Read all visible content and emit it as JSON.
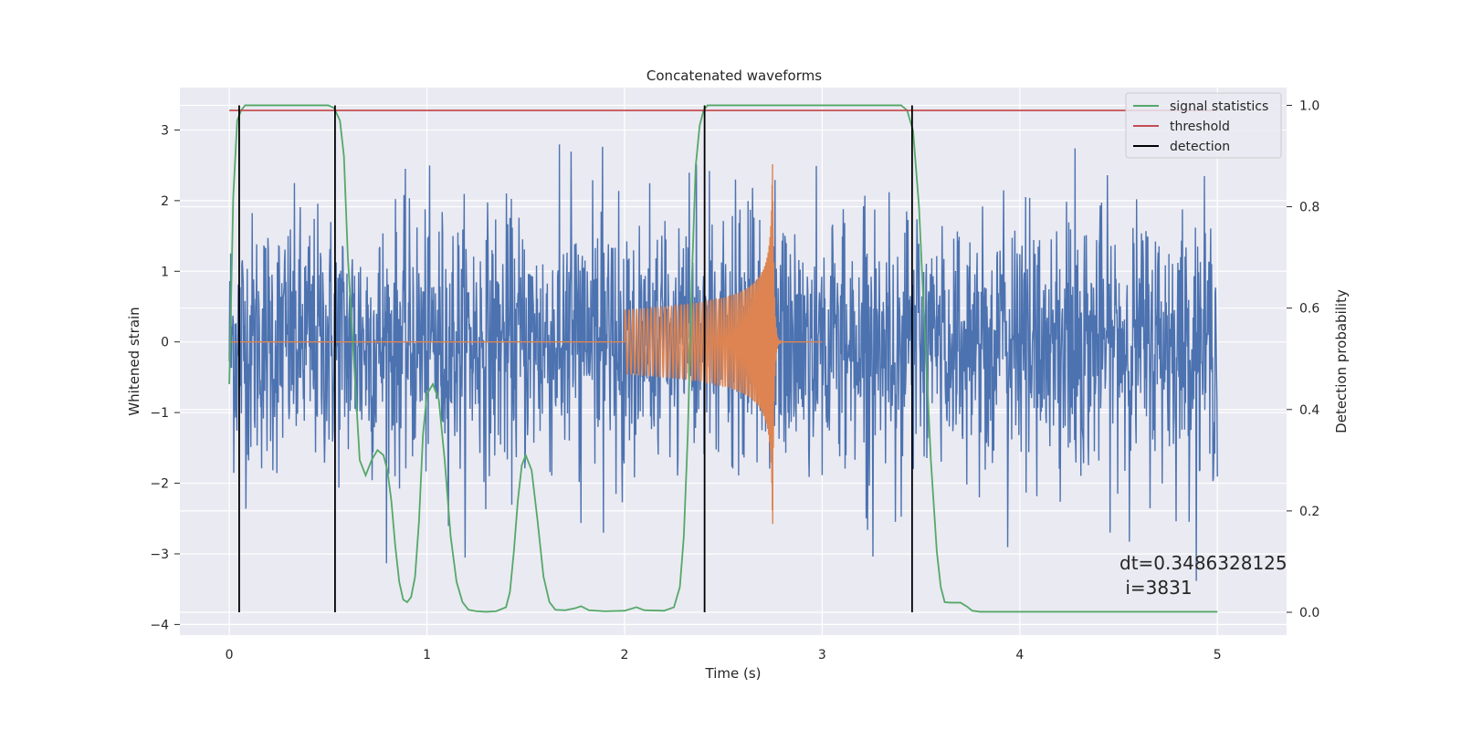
{
  "chart_data": {
    "type": "line",
    "title": "Concatenated waveforms",
    "xlabel": "Time (s)",
    "ylabel": "Whitened strain",
    "ylabel_right": "Detection probability",
    "xlim": [
      -0.25,
      5.35
    ],
    "ylim": [
      -4.15,
      3.6
    ],
    "ylim_right": [
      -0.045,
      1.035
    ],
    "xticks": [
      0,
      1,
      2,
      3,
      4,
      5
    ],
    "xtick_labels": [
      "0",
      "1",
      "2",
      "3",
      "4",
      "5"
    ],
    "yticks": [
      -4,
      -3,
      -2,
      -1,
      0,
      1,
      2,
      3
    ],
    "ytick_labels": [
      "−4",
      "−3",
      "−2",
      "−1",
      "0",
      "1",
      "2",
      "3"
    ],
    "yticks_right": [
      0.0,
      0.2,
      0.4,
      0.6,
      0.8,
      1.0
    ],
    "ytick_labels_right": [
      "0.0",
      "0.2",
      "0.4",
      "0.6",
      "0.8",
      "1.0"
    ],
    "grid": true,
    "legend_position": "top-right",
    "background": "#eaeaf2",
    "series": [
      {
        "name": "",
        "axis": "left",
        "kind": "noise",
        "color": "#4c72b0",
        "x_range": [
          0.0,
          5.0
        ],
        "approx_peak": 2.85,
        "approx_trough": -3.7
      },
      {
        "name": "",
        "axis": "left",
        "kind": "chirp",
        "color": "#dd8452",
        "x_range": [
          0.0,
          3.0
        ],
        "chirp_start": 2.0,
        "chirp_merger": 2.75,
        "start_amplitude": 0.45,
        "peak_max": 2.6,
        "peak_min": -2.95
      },
      {
        "name": "signal statistics",
        "axis": "right",
        "color": "#55a868",
        "x": [
          0.0,
          0.02,
          0.04,
          0.06,
          0.08,
          0.1,
          0.5,
          0.53,
          0.56,
          0.58,
          0.6,
          0.63,
          0.66,
          0.69,
          0.72,
          0.75,
          0.78,
          0.8,
          0.82,
          0.84,
          0.86,
          0.88,
          0.9,
          0.92,
          0.94,
          0.96,
          0.98,
          1.0,
          1.03,
          1.06,
          1.09,
          1.12,
          1.15,
          1.18,
          1.21,
          1.25,
          1.3,
          1.35,
          1.4,
          1.42,
          1.44,
          1.46,
          1.48,
          1.5,
          1.53,
          1.56,
          1.59,
          1.62,
          1.65,
          1.7,
          1.75,
          1.78,
          1.82,
          1.9,
          2.0,
          2.06,
          2.1,
          2.2,
          2.25,
          2.28,
          2.3,
          2.32,
          2.34,
          2.36,
          2.38,
          2.4,
          2.42,
          2.45,
          2.5,
          3.4,
          3.43,
          3.46,
          3.49,
          3.52,
          3.55,
          3.58,
          3.6,
          3.62,
          3.65,
          3.7,
          3.73,
          3.76,
          3.8,
          4.0,
          5.0
        ],
        "values": [
          0.45,
          0.82,
          0.97,
          0.99,
          1.0,
          1.0,
          1.0,
          0.995,
          0.97,
          0.9,
          0.7,
          0.5,
          0.3,
          0.27,
          0.3,
          0.32,
          0.31,
          0.28,
          0.22,
          0.13,
          0.06,
          0.025,
          0.02,
          0.03,
          0.07,
          0.18,
          0.35,
          0.43,
          0.45,
          0.42,
          0.3,
          0.15,
          0.06,
          0.02,
          0.005,
          0.002,
          0.001,
          0.002,
          0.01,
          0.04,
          0.12,
          0.22,
          0.29,
          0.31,
          0.28,
          0.18,
          0.07,
          0.02,
          0.005,
          0.004,
          0.008,
          0.012,
          0.004,
          0.002,
          0.003,
          0.01,
          0.004,
          0.003,
          0.01,
          0.05,
          0.15,
          0.35,
          0.65,
          0.88,
          0.96,
          0.99,
          1.0,
          1.0,
          1.0,
          1.0,
          0.99,
          0.95,
          0.8,
          0.55,
          0.3,
          0.12,
          0.05,
          0.02,
          0.019,
          0.019,
          0.012,
          0.003,
          0.001,
          0.001,
          0.001
        ]
      },
      {
        "name": "threshold",
        "axis": "right",
        "color": "#c44e52",
        "x": [
          0.0,
          5.0
        ],
        "values": [
          0.99,
          0.99
        ]
      },
      {
        "name": "detection",
        "axis": "right",
        "color": "#000000",
        "kind": "vlines",
        "x": [
          0.05,
          0.535,
          2.405,
          3.455
        ],
        "values": [
          1.0,
          1.0,
          1.0,
          1.0
        ]
      }
    ],
    "legend": [
      "signal statistics",
      "threshold",
      "detection"
    ],
    "annotation": "dt=0.3486328125\n i=3831"
  }
}
